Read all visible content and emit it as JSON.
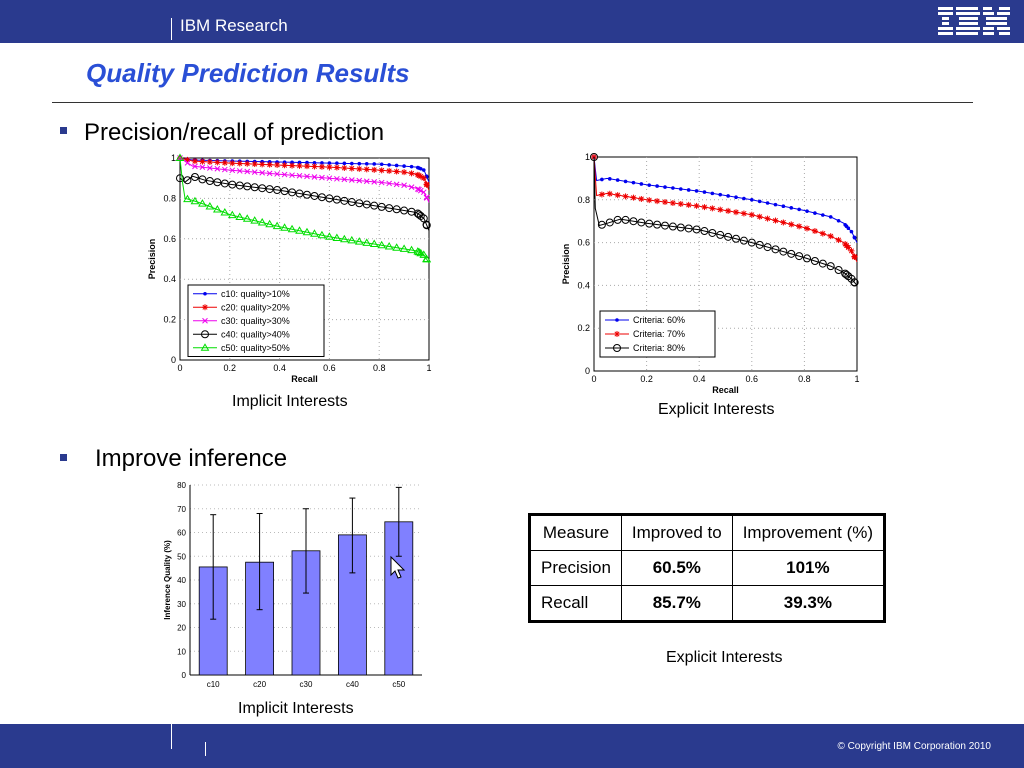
{
  "header": {
    "brand": "IBM Research",
    "logo_text": "IBM"
  },
  "title": "Quality Prediction Results",
  "bullets": [
    "Precision/recall of prediction",
    "Improve inference"
  ],
  "captions": {
    "implicit_pr": "Implicit Interests",
    "explicit_pr": "Explicit Interests",
    "implicit_bar": "Implicit Interests",
    "table": "Explicit Interests"
  },
  "table": {
    "headers": [
      "Measure",
      "Improved to",
      "Improvement (%)"
    ],
    "rows": [
      [
        "Precision",
        "60.5%",
        "101%"
      ],
      [
        "Recall",
        "85.7%",
        "39.3%"
      ]
    ]
  },
  "footer": {
    "copyright": "© Copyright IBM Corporation 2010"
  },
  "colors": {
    "brand_bar": "#2a3a8e",
    "title": "#2a4fd6",
    "bar_fill": "#8080ff"
  },
  "chart_data": [
    {
      "type": "line",
      "xlabel": "Recall",
      "ylabel": "Precision",
      "xlim": [
        0,
        1
      ],
      "ylim": [
        0,
        1
      ],
      "xticks": [
        "0",
        "0.2",
        "0.4",
        "0.6",
        "0.8",
        "1"
      ],
      "yticks": [
        "0",
        "0.2",
        "0.4",
        "0.6",
        "0.8",
        "1"
      ],
      "legend_position": "bottom-left",
      "grid": true,
      "series": [
        {
          "name": "c10: quality>10%",
          "color": "#0000ee",
          "marker": "dot",
          "points": [
            [
              0,
              1
            ],
            [
              0.05,
              0.99
            ],
            [
              0.2,
              0.985
            ],
            [
              0.4,
              0.98
            ],
            [
              0.6,
              0.975
            ],
            [
              0.8,
              0.97
            ],
            [
              0.9,
              0.96
            ],
            [
              0.95,
              0.955
            ],
            [
              0.98,
              0.94
            ],
            [
              1,
              0.88
            ]
          ]
        },
        {
          "name": "c20: quality>20%",
          "color": "#ee0000",
          "marker": "star",
          "points": [
            [
              0,
              1
            ],
            [
              0.05,
              0.985
            ],
            [
              0.2,
              0.975
            ],
            [
              0.4,
              0.965
            ],
            [
              0.6,
              0.955
            ],
            [
              0.8,
              0.94
            ],
            [
              0.9,
              0.93
            ],
            [
              0.95,
              0.92
            ],
            [
              0.98,
              0.9
            ],
            [
              1,
              0.84
            ]
          ]
        },
        {
          "name": "c30: quality>30%",
          "color": "#ee00ee",
          "marker": "x",
          "points": [
            [
              0,
              1
            ],
            [
              0.05,
              0.96
            ],
            [
              0.2,
              0.94
            ],
            [
              0.4,
              0.92
            ],
            [
              0.6,
              0.9
            ],
            [
              0.8,
              0.88
            ],
            [
              0.9,
              0.865
            ],
            [
              0.95,
              0.85
            ],
            [
              0.98,
              0.83
            ],
            [
              1,
              0.78
            ]
          ]
        },
        {
          "name": "c40: quality>40%",
          "color": "#000000",
          "marker": "circle",
          "points": [
            [
              0,
              0.9
            ],
            [
              0.02,
              0.88
            ],
            [
              0.05,
              0.91
            ],
            [
              0.1,
              0.89
            ],
            [
              0.2,
              0.87
            ],
            [
              0.4,
              0.84
            ],
            [
              0.6,
              0.8
            ],
            [
              0.8,
              0.76
            ],
            [
              0.9,
              0.74
            ],
            [
              0.95,
              0.73
            ],
            [
              0.98,
              0.7
            ],
            [
              1,
              0.64
            ]
          ]
        },
        {
          "name": "c50: quality>50%",
          "color": "#00dd00",
          "marker": "triangle",
          "points": [
            [
              0,
              1
            ],
            [
              0.01,
              0.88
            ],
            [
              0.02,
              0.8
            ],
            [
              0.05,
              0.79
            ],
            [
              0.1,
              0.77
            ],
            [
              0.2,
              0.72
            ],
            [
              0.4,
              0.66
            ],
            [
              0.6,
              0.61
            ],
            [
              0.8,
              0.57
            ],
            [
              0.9,
              0.55
            ],
            [
              0.95,
              0.54
            ],
            [
              0.98,
              0.52
            ],
            [
              1,
              0.48
            ]
          ]
        }
      ]
    },
    {
      "type": "line",
      "xlabel": "Recall",
      "ylabel": "Precision",
      "xlim": [
        0,
        1
      ],
      "ylim": [
        0,
        1
      ],
      "xticks": [
        "0",
        "0.2",
        "0.4",
        "0.6",
        "0.8",
        "1"
      ],
      "yticks": [
        "0",
        "0.2",
        "0.4",
        "0.6",
        "0.8",
        "1"
      ],
      "legend_position": "bottom-left",
      "grid": true,
      "series": [
        {
          "name": "Criteria: 60%",
          "color": "#0000ee",
          "marker": "dot",
          "points": [
            [
              0,
              1
            ],
            [
              0.01,
              0.89
            ],
            [
              0.05,
              0.9
            ],
            [
              0.1,
              0.89
            ],
            [
              0.2,
              0.87
            ],
            [
              0.4,
              0.84
            ],
            [
              0.6,
              0.8
            ],
            [
              0.8,
              0.75
            ],
            [
              0.9,
              0.72
            ],
            [
              0.95,
              0.69
            ],
            [
              0.98,
              0.65
            ],
            [
              1,
              0.6
            ]
          ]
        },
        {
          "name": "Criteria: 70%",
          "color": "#ee0000",
          "marker": "star",
          "points": [
            [
              0,
              1
            ],
            [
              0.01,
              0.82
            ],
            [
              0.05,
              0.83
            ],
            [
              0.1,
              0.82
            ],
            [
              0.2,
              0.8
            ],
            [
              0.4,
              0.77
            ],
            [
              0.6,
              0.73
            ],
            [
              0.8,
              0.67
            ],
            [
              0.9,
              0.63
            ],
            [
              0.95,
              0.6
            ],
            [
              0.98,
              0.56
            ],
            [
              1,
              0.51
            ]
          ]
        },
        {
          "name": "Criteria: 80%",
          "color": "#000000",
          "marker": "circle",
          "points": [
            [
              0,
              1
            ],
            [
              0.005,
              0.76
            ],
            [
              0.02,
              0.68
            ],
            [
              0.05,
              0.69
            ],
            [
              0.1,
              0.71
            ],
            [
              0.2,
              0.69
            ],
            [
              0.4,
              0.66
            ],
            [
              0.6,
              0.6
            ],
            [
              0.8,
              0.53
            ],
            [
              0.9,
              0.49
            ],
            [
              0.95,
              0.46
            ],
            [
              0.98,
              0.43
            ],
            [
              1,
              0.4
            ]
          ]
        }
      ]
    },
    {
      "type": "bar",
      "ylabel": "Inference Quality (%)",
      "ylim": [
        0,
        80
      ],
      "yticks": [
        "0",
        "10",
        "20",
        "30",
        "40",
        "50",
        "60",
        "70",
        "80"
      ],
      "categories": [
        "c10",
        "c20",
        "c30",
        "c40",
        "c50"
      ],
      "values": [
        45.5,
        47.5,
        52.3,
        59,
        64.5
      ],
      "error_low": [
        23.5,
        27.5,
        34.5,
        43,
        50
      ],
      "error_high": [
        67.5,
        68,
        70,
        74.5,
        79
      ],
      "grid": true
    }
  ]
}
